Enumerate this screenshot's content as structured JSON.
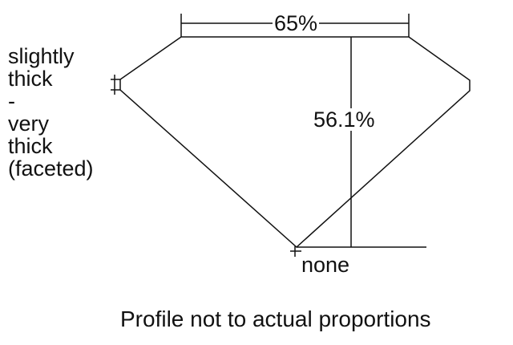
{
  "girdle_label": [
    "slightly",
    "thick",
    "-",
    "very",
    "thick",
    "(faceted)"
  ],
  "table_percent": "65%",
  "total_depth_percent": "56.1%",
  "culet_label": "none",
  "caption": "Profile not to actual proportions",
  "colors": {
    "line": "#111111",
    "background": "#ffffff"
  }
}
